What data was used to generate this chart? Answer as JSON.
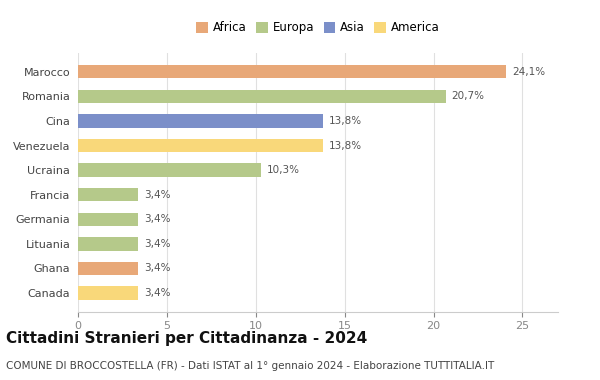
{
  "categories": [
    "Canada",
    "Ghana",
    "Lituania",
    "Germania",
    "Francia",
    "Ucraina",
    "Venezuela",
    "Cina",
    "Romania",
    "Marocco"
  ],
  "values": [
    3.4,
    3.4,
    3.4,
    3.4,
    3.4,
    10.3,
    13.8,
    13.8,
    20.7,
    24.1
  ],
  "labels": [
    "3,4%",
    "3,4%",
    "3,4%",
    "3,4%",
    "3,4%",
    "10,3%",
    "13,8%",
    "13,8%",
    "20,7%",
    "24,1%"
  ],
  "colors": [
    "#f9d87a",
    "#e8a878",
    "#b5c98a",
    "#b5c98a",
    "#b5c98a",
    "#b5c98a",
    "#f9d87a",
    "#7b8fc9",
    "#b5c98a",
    "#e8a878"
  ],
  "legend_labels": [
    "Africa",
    "Europa",
    "Asia",
    "America"
  ],
  "legend_colors": [
    "#e8a878",
    "#b5c98a",
    "#7b8fc9",
    "#f9d87a"
  ],
  "title": "Cittadini Stranieri per Cittadinanza - 2024",
  "subtitle": "COMUNE DI BROCCOSTELLA (FR) - Dati ISTAT al 1° gennaio 2024 - Elaborazione TUTTITALIA.IT",
  "xlim": [
    0,
    27
  ],
  "xticks": [
    0,
    5,
    10,
    15,
    20,
    25
  ],
  "background_color": "#ffffff",
  "bar_height": 0.55,
  "title_fontsize": 11,
  "subtitle_fontsize": 7.5,
  "label_fontsize": 7.5,
  "tick_fontsize": 8,
  "legend_fontsize": 8.5
}
